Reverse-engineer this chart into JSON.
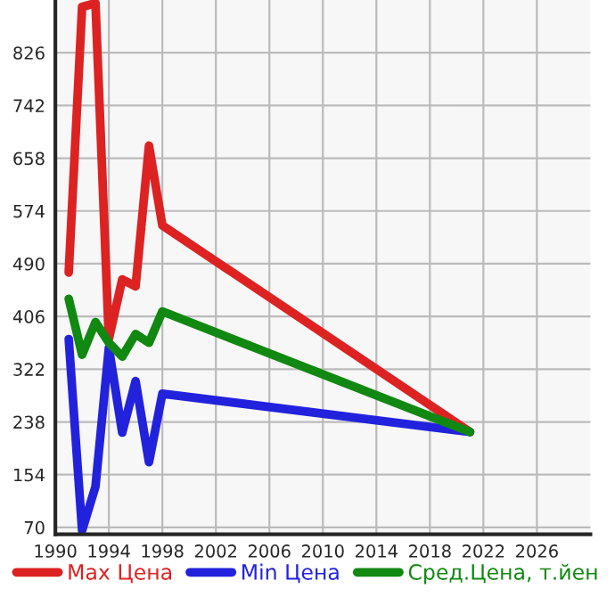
{
  "chart_data": {
    "type": "line",
    "x": [
      1991,
      1992,
      1993,
      1994,
      1995,
      1996,
      1997,
      1998,
      2021
    ],
    "series": [
      {
        "name": "Max Цена",
        "color": "#dd2222",
        "values": [
          476,
          899,
          905,
          370,
          465,
          454,
          678,
          551,
          222
        ]
      },
      {
        "name": "Min Цена",
        "color": "#2222dd",
        "values": [
          370,
          65,
          135,
          356,
          221,
          303,
          174,
          283,
          222
        ]
      },
      {
        "name": "Сред.Цена, т.йен",
        "color": "#118811",
        "values": [
          434,
          345,
          397,
          364,
          342,
          378,
          364,
          414,
          222
        ]
      }
    ],
    "xlim": [
      1990,
      2030
    ],
    "ylim": [
      59,
      910
    ],
    "xticks": [
      1990,
      1994,
      1998,
      2002,
      2006,
      2010,
      2014,
      2018,
      2022,
      2026
    ],
    "yticks": [
      70,
      154,
      238,
      322,
      406,
      490,
      574,
      658,
      742,
      826
    ],
    "grid": true,
    "legend": "bottom",
    "marker": "none",
    "line_style": "solid"
  }
}
